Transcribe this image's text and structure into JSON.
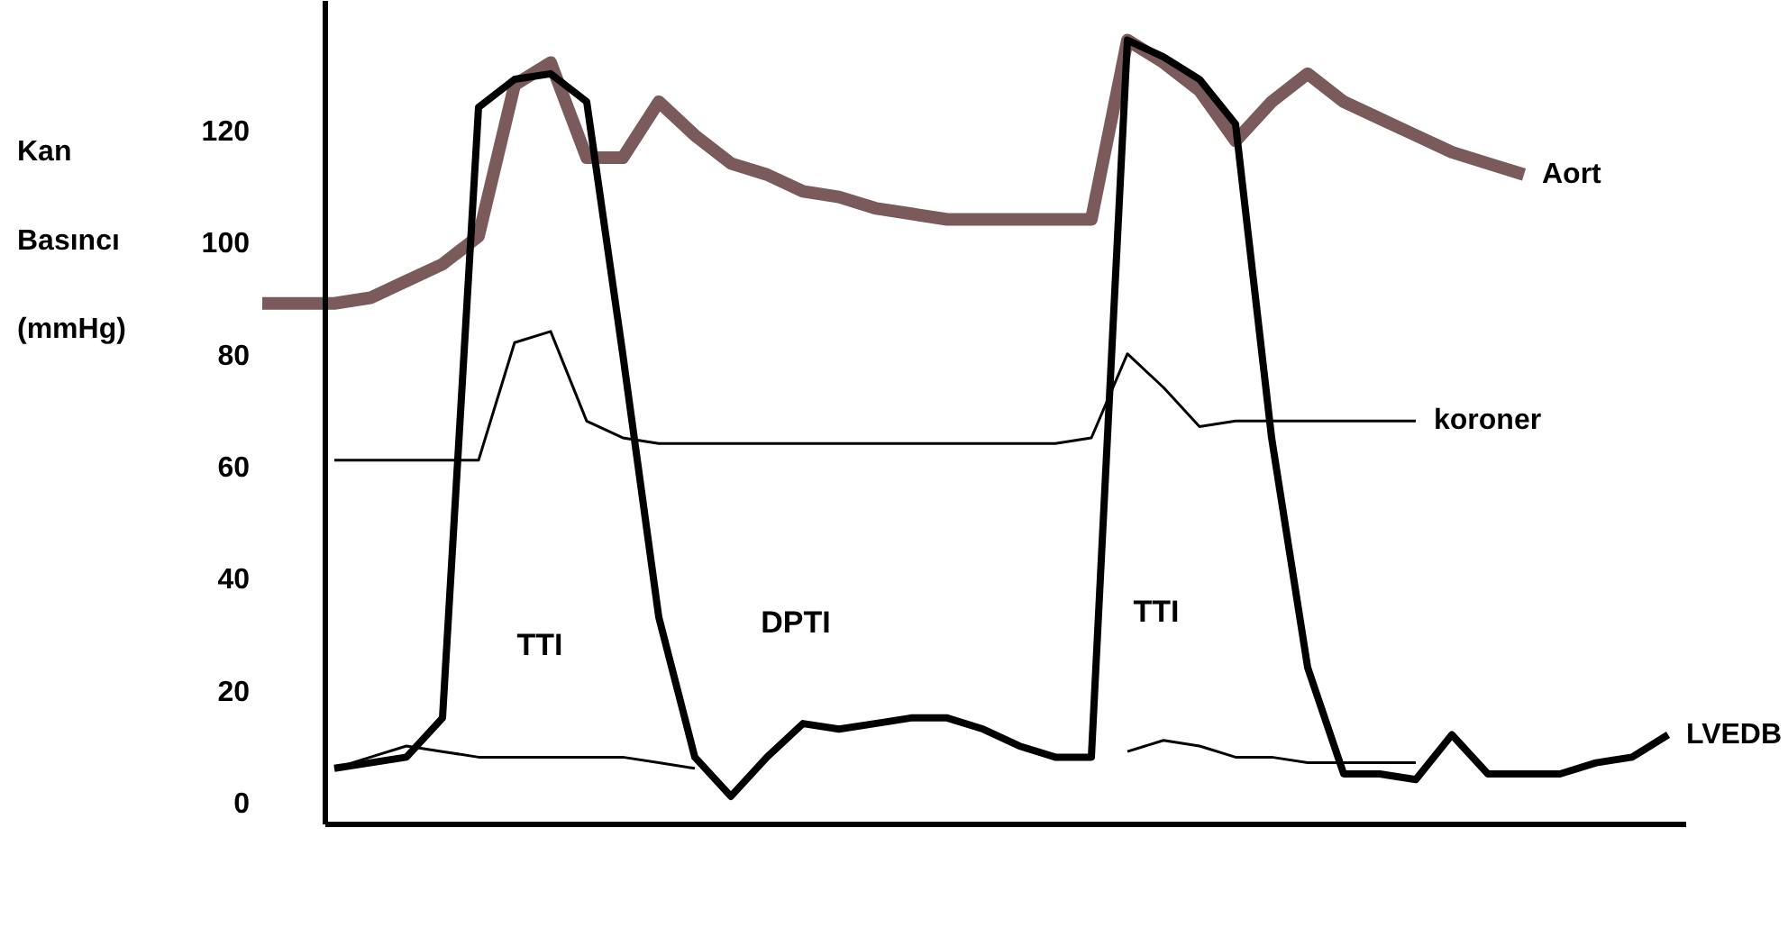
{
  "chart_data": {
    "type": "line",
    "ylabel": "Kan Basıncı (mmHg)",
    "categories": [
      null,
      null,
      null,
      null,
      null,
      null,
      null,
      null,
      null,
      null,
      null,
      null,
      null,
      null,
      null,
      null,
      null,
      null,
      null,
      null,
      null,
      null,
      null,
      null,
      null,
      null,
      null,
      null,
      null,
      null,
      null,
      null,
      null,
      null,
      null,
      null,
      null,
      null,
      null,
      null
    ],
    "series": [
      {
        "name": "Aort",
        "color": "#7a5a5a",
        "values": [
          89,
          89,
          89,
          90,
          93,
          96,
          101,
          128,
          132,
          115,
          115,
          125,
          119,
          114,
          112,
          109,
          108,
          106,
          105,
          104,
          104,
          104,
          104,
          104,
          136,
          132,
          127,
          118,
          125,
          130,
          125,
          122,
          119,
          116,
          114,
          112,
          null,
          null,
          null,
          null
        ]
      },
      {
        "name": "koroner",
        "color": "#000000",
        "values": [
          null,
          null,
          61,
          61,
          61,
          61,
          61,
          82,
          84,
          68,
          65,
          64,
          64,
          64,
          64,
          64,
          64,
          64,
          64,
          64,
          64,
          64,
          64,
          65,
          80,
          74,
          67,
          68,
          68,
          68,
          68,
          68,
          68,
          null,
          null,
          null,
          null,
          null,
          null,
          null
        ]
      },
      {
        "name": "LVEDB",
        "color": "#000000",
        "values": [
          null,
          null,
          6,
          7,
          8,
          15,
          124,
          129,
          130,
          125,
          80,
          33,
          8,
          1,
          8,
          14,
          13,
          14,
          15,
          15,
          13,
          10,
          8,
          8,
          136,
          133,
          129,
          121,
          65,
          24,
          5,
          5,
          4,
          12,
          5,
          5,
          5,
          7,
          8,
          12
        ]
      },
      {
        "color": "#000000",
        "values": [
          null,
          null,
          6,
          8,
          10,
          9,
          8,
          8,
          8,
          8,
          8,
          7,
          6,
          null,
          null,
          null,
          null,
          null,
          null,
          null,
          null,
          null,
          null,
          null,
          9,
          11,
          10,
          8,
          8,
          7,
          7,
          7,
          7,
          null,
          null,
          null,
          null,
          null,
          null,
          null
        ]
      }
    ],
    "ylim": [
      -4,
      143
    ],
    "yticks": [
      0,
      20,
      40,
      60,
      80,
      100,
      120
    ],
    "tick_labels": "y",
    "grid": false,
    "annotations": [
      "TTI",
      "DPTI",
      "TTI"
    ]
  }
}
